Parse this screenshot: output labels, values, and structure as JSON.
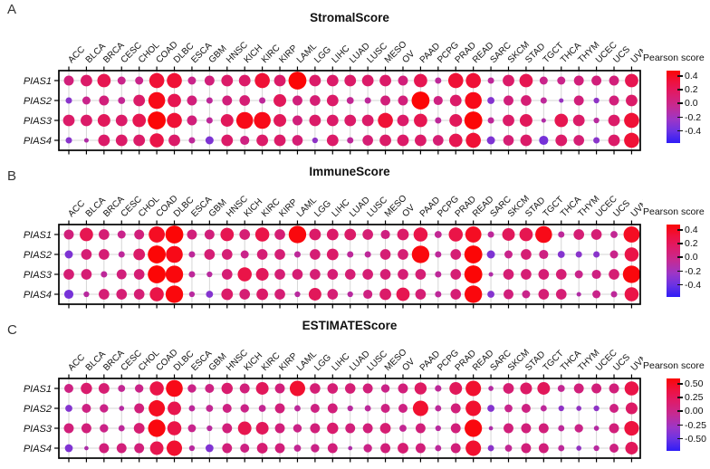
{
  "colors": {
    "grid": "#d6d6d6",
    "box_border": "#000000",
    "scale_positive_max": "#fb0606",
    "scale_zero": "#a330b2",
    "scale_negative_max": "#2f1df6"
  },
  "chart_data": [
    {
      "type": "bubble-heatmap",
      "panel_label": "A",
      "title": "StromalScore",
      "legend_title": "Pearson score",
      "legend_ticks": [
        "0.4",
        "0.2",
        "0.0",
        "-0.2",
        "-0.4"
      ],
      "scale_max": 0.4,
      "encoding": "dot color and size encode Pearson correlation (red positive, blue negative)",
      "rows": [
        "PIAS1",
        "PIAS2",
        "PIAS3",
        "PIAS4"
      ],
      "columns": [
        "ACC",
        "BLCA",
        "BRCA",
        "CESC",
        "CHOL",
        "COAD",
        "DLBC",
        "ESCA",
        "GBM",
        "HNSC",
        "KICH",
        "KIRC",
        "KIRP",
        "LAML",
        "LGG",
        "LIHC",
        "LUAD",
        "LUSC",
        "MESO",
        "OV",
        "PAAD",
        "PCPG",
        "PRAD",
        "READ",
        "SARC",
        "SKCM",
        "STAD",
        "TGCT",
        "THCA",
        "THYM",
        "UCEC",
        "UCS",
        "UVM"
      ],
      "values": [
        [
          0.2,
          0.25,
          0.3,
          0.15,
          0.15,
          0.35,
          0.35,
          0.15,
          0.2,
          0.25,
          0.25,
          0.35,
          0.25,
          0.45,
          0.25,
          0.25,
          0.25,
          0.25,
          0.25,
          0.2,
          0.3,
          0.1,
          0.35,
          0.35,
          0.1,
          0.25,
          0.3,
          0.15,
          0.15,
          0.2,
          0.2,
          0.2,
          0.3
        ],
        [
          -0.1,
          0.15,
          0.2,
          0.12,
          0.25,
          0.4,
          0.3,
          0.2,
          0.1,
          0.2,
          0.22,
          0.1,
          0.28,
          0.2,
          0.22,
          0.25,
          0.12,
          0.1,
          0.2,
          0.2,
          0.45,
          0.18,
          0.25,
          0.4,
          -0.12,
          0.2,
          0.22,
          0.1,
          -0.05,
          0.2,
          -0.08,
          0.2,
          0.25
        ],
        [
          0.25,
          0.25,
          0.28,
          0.25,
          0.3,
          0.5,
          0.35,
          0.2,
          0.1,
          0.28,
          0.4,
          0.4,
          0.28,
          0.2,
          0.25,
          0.25,
          0.25,
          0.25,
          0.35,
          0.25,
          0.3,
          0.1,
          0.28,
          0.48,
          0.1,
          0.25,
          0.28,
          0.05,
          0.3,
          0.25,
          0.08,
          0.25,
          0.35
        ],
        [
          -0.1,
          0.05,
          0.25,
          0.25,
          0.25,
          0.32,
          0.25,
          0.1,
          -0.15,
          0.25,
          0.18,
          0.25,
          0.25,
          0.22,
          -0.08,
          0.25,
          0.1,
          0.22,
          0.25,
          0.25,
          0.25,
          0.22,
          0.3,
          0.35,
          -0.15,
          0.22,
          0.25,
          -0.18,
          0.25,
          0.22,
          -0.1,
          0.25,
          0.35
        ]
      ]
    },
    {
      "type": "bubble-heatmap",
      "panel_label": "B",
      "title": "ImmuneScore",
      "legend_title": "Pearson score",
      "legend_ticks": [
        "0.4",
        "0.2",
        "0.0",
        "-0.2",
        "-0.4"
      ],
      "scale_max": 0.4,
      "encoding": "dot color and size encode Pearson correlation (red positive, blue negative)",
      "rows": [
        "PIAS1",
        "PIAS2",
        "PIAS3",
        "PIAS4"
      ],
      "columns": [
        "ACC",
        "BLCA",
        "BRCA",
        "CESC",
        "CHOL",
        "COAD",
        "DLBC",
        "ESCA",
        "GBM",
        "HNSC",
        "KICH",
        "KIRC",
        "KIRP",
        "LAML",
        "LGG",
        "LIHC",
        "LUAD",
        "LUSC",
        "MESO",
        "OV",
        "PAAD",
        "PCPG",
        "PRAD",
        "READ",
        "SARC",
        "SKCM",
        "STAD",
        "TGCT",
        "THCA",
        "THYM",
        "UCEC",
        "UCS",
        "UVM"
      ],
      "values": [
        [
          0.2,
          0.3,
          0.22,
          0.15,
          0.2,
          0.38,
          0.48,
          0.2,
          0.2,
          0.3,
          0.22,
          0.32,
          0.22,
          0.42,
          0.25,
          0.25,
          0.25,
          0.22,
          0.18,
          0.25,
          0.32,
          0.12,
          0.32,
          0.38,
          0.1,
          0.28,
          0.3,
          0.4,
          0.1,
          0.22,
          0.22,
          0.12,
          0.38
        ],
        [
          -0.15,
          0.22,
          0.22,
          0.1,
          0.25,
          0.45,
          0.4,
          0.1,
          0.22,
          0.22,
          0.15,
          0.22,
          0.22,
          0.1,
          0.22,
          0.25,
          0.1,
          0.1,
          0.22,
          0.22,
          0.42,
          0.1,
          0.22,
          0.45,
          -0.15,
          0.15,
          0.22,
          0.18,
          -0.12,
          -0.1,
          -0.1,
          0.15,
          0.32
        ],
        [
          0.22,
          0.22,
          0.1,
          0.2,
          0.22,
          0.48,
          0.42,
          0.1,
          0.08,
          0.22,
          0.32,
          0.28,
          0.22,
          0.22,
          0.22,
          0.22,
          0.22,
          0.22,
          0.22,
          0.22,
          0.22,
          0.1,
          0.22,
          0.45,
          0.05,
          0.22,
          0.22,
          0.22,
          0.22,
          0.15,
          0.18,
          0.22,
          0.42
        ],
        [
          -0.18,
          0.08,
          0.22,
          0.22,
          0.22,
          0.32,
          0.42,
          0.08,
          -0.12,
          0.25,
          0.22,
          0.25,
          0.22,
          0.08,
          0.28,
          0.22,
          0.08,
          0.18,
          0.25,
          0.3,
          0.22,
          0.1,
          0.22,
          0.42,
          -0.12,
          0.2,
          0.15,
          0.22,
          0.22,
          0.05,
          0.15,
          0.1,
          0.32
        ]
      ]
    },
    {
      "type": "bubble-heatmap",
      "panel_label": "C",
      "title": "ESTIMATEScore",
      "legend_title": "Pearson score",
      "legend_ticks": [
        "0.50",
        "0.25",
        "0.00",
        "-0.25",
        "-0.50"
      ],
      "scale_max": 0.5,
      "encoding": "dot color and size encode Pearson correlation (red positive, blue negative)",
      "rows": [
        "PIAS1",
        "PIAS2",
        "PIAS3",
        "PIAS4"
      ],
      "columns": [
        "ACC",
        "BLCA",
        "BRCA",
        "CESC",
        "CHOL",
        "COAD",
        "DLBC",
        "ESCA",
        "GBM",
        "HNSC",
        "KICH",
        "KIRC",
        "KIRP",
        "LAML",
        "LGG",
        "LIHC",
        "LUAD",
        "LUSC",
        "MESO",
        "OV",
        "PAAD",
        "PCPG",
        "PRAD",
        "READ",
        "SARC",
        "SKCM",
        "STAD",
        "TGCT",
        "THCA",
        "THYM",
        "UCEC",
        "UCS",
        "UVM"
      ],
      "values": [
        [
          0.22,
          0.3,
          0.28,
          0.15,
          0.2,
          0.4,
          0.5,
          0.2,
          0.22,
          0.3,
          0.25,
          0.35,
          0.25,
          0.45,
          0.27,
          0.27,
          0.27,
          0.25,
          0.2,
          0.25,
          0.33,
          0.13,
          0.35,
          0.45,
          0.08,
          0.28,
          0.32,
          0.35,
          0.15,
          0.25,
          0.25,
          0.25,
          0.4
        ],
        [
          -0.15,
          0.22,
          0.2,
          0.08,
          0.25,
          0.48,
          0.38,
          0.12,
          0.15,
          0.22,
          0.2,
          0.15,
          0.25,
          0.12,
          0.22,
          0.25,
          0.1,
          0.12,
          0.22,
          0.22,
          0.45,
          0.12,
          0.25,
          0.45,
          -0.15,
          0.18,
          0.22,
          0.12,
          -0.1,
          -0.08,
          -0.1,
          0.22,
          0.32
        ],
        [
          0.25,
          0.25,
          0.2,
          0.12,
          0.28,
          0.52,
          0.4,
          0.18,
          0.1,
          0.25,
          0.38,
          0.35,
          0.25,
          0.2,
          0.25,
          0.3,
          0.25,
          0.25,
          0.28,
          0.15,
          0.25,
          0.1,
          0.25,
          0.52,
          0.05,
          0.25,
          0.25,
          0.25,
          0.12,
          0.2,
          0.08,
          0.25,
          0.42
        ],
        [
          -0.18,
          0.05,
          0.25,
          0.25,
          0.25,
          0.38,
          0.45,
          0.1,
          -0.18,
          0.25,
          0.22,
          0.28,
          0.25,
          0.15,
          0.2,
          0.25,
          0.05,
          0.2,
          0.25,
          0.28,
          0.25,
          0.12,
          0.25,
          0.45,
          -0.12,
          0.15,
          0.25,
          0.25,
          0.12,
          -0.08,
          0.1,
          0.22,
          0.35
        ]
      ]
    }
  ]
}
